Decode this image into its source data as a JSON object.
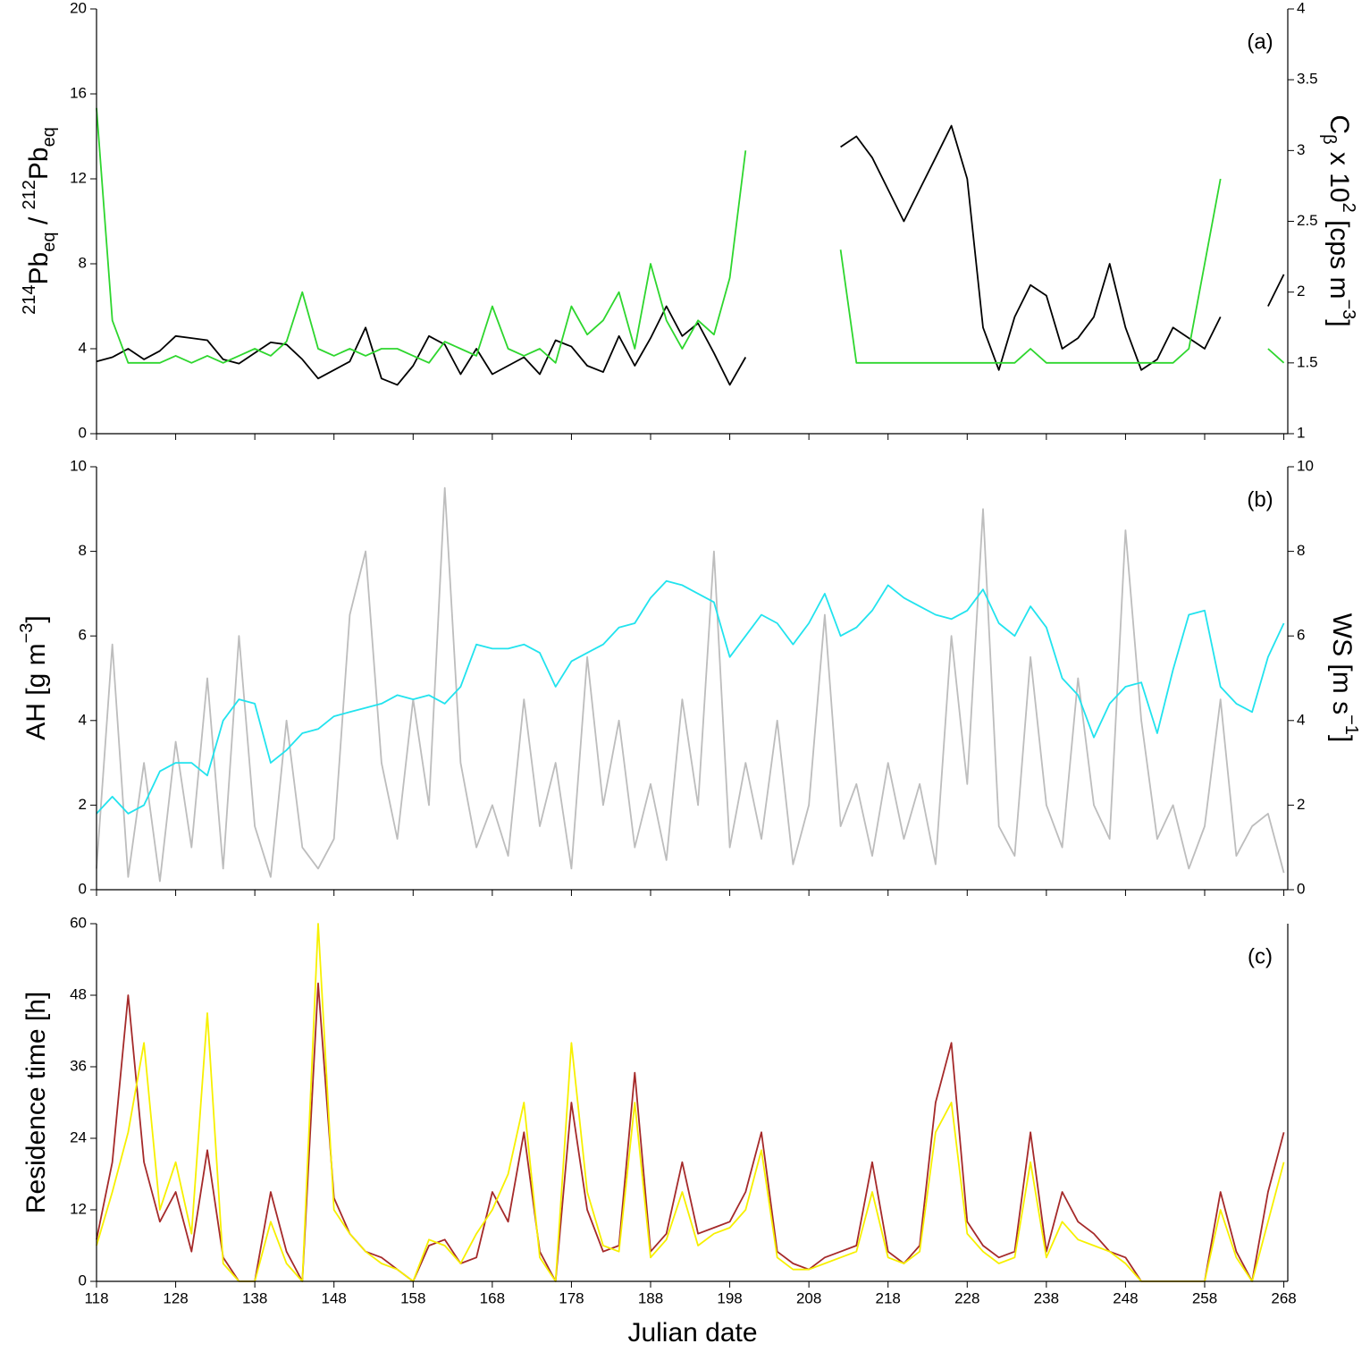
{
  "chart_data": [
    {
      "type": "line",
      "panel_label": "(a)",
      "y_label_parts": [
        "214",
        "Pb",
        "eq",
        " / ",
        "212",
        "Pb",
        "eq"
      ],
      "y2_label_parts": [
        "C",
        "β",
        " x 10",
        "2",
        " [cps m",
        "−3",
        "]"
      ],
      "xlim": [
        118,
        268.5
      ],
      "ylim": [
        0,
        20
      ],
      "yticks": [
        0,
        4,
        8,
        12,
        16,
        20
      ],
      "y2lim": [
        1,
        4
      ],
      "y2ticks": [
        1,
        1.5,
        2,
        2.5,
        3,
        3.5,
        4
      ],
      "x": [
        118,
        120,
        122,
        124,
        126,
        128,
        130,
        132,
        134,
        136,
        138,
        140,
        142,
        144,
        146,
        148,
        150,
        152,
        154,
        156,
        158,
        160,
        162,
        164,
        166,
        168,
        170,
        172,
        174,
        176,
        178,
        180,
        182,
        184,
        186,
        188,
        190,
        192,
        194,
        196,
        198,
        200,
        202,
        204,
        206,
        208,
        210,
        212,
        214,
        216,
        218,
        220,
        222,
        224,
        226,
        228,
        230,
        232,
        234,
        236,
        238,
        240,
        242,
        244,
        246,
        248,
        250,
        252,
        254,
        256,
        258,
        260,
        262,
        264,
        266,
        268
      ],
      "series": [
        {
          "color": "#000000",
          "axis": "y",
          "values": [
            3.4,
            3.6,
            4.0,
            3.5,
            3.9,
            4.6,
            4.5,
            4.4,
            3.5,
            3.3,
            3.8,
            4.3,
            4.2,
            3.5,
            2.6,
            3.0,
            3.4,
            5.0,
            2.6,
            2.3,
            3.2,
            4.6,
            4.2,
            2.8,
            4.0,
            2.8,
            3.2,
            3.6,
            2.8,
            4.4,
            4.1,
            3.2,
            2.9,
            4.6,
            3.2,
            4.5,
            6.0,
            4.6,
            5.2,
            3.8,
            2.3,
            3.6,
            null,
            null,
            null,
            null,
            null,
            13.5,
            14.0,
            13.0,
            11.5,
            10.0,
            11.5,
            13.0,
            14.5,
            12.0,
            5.0,
            3.0,
            5.5,
            7.0,
            6.5,
            4.0,
            4.5,
            5.5,
            8.0,
            5.0,
            3.0,
            3.5,
            5.0,
            4.5,
            4.0,
            5.5,
            null,
            null,
            6.0,
            7.5
          ]
        },
        {
          "color": "#2ed62e",
          "axis": "y2",
          "values": [
            3.3,
            1.8,
            1.5,
            1.5,
            1.5,
            1.55,
            1.5,
            1.55,
            1.5,
            1.55,
            1.6,
            1.55,
            1.65,
            2.0,
            1.6,
            1.55,
            1.6,
            1.55,
            1.6,
            1.6,
            1.55,
            1.5,
            1.65,
            1.6,
            1.55,
            1.9,
            1.6,
            1.55,
            1.6,
            1.5,
            1.9,
            1.7,
            1.8,
            2.0,
            1.6,
            2.2,
            1.8,
            1.6,
            1.8,
            1.7,
            2.1,
            3.0,
            null,
            null,
            null,
            null,
            null,
            2.3,
            1.5,
            1.5,
            1.5,
            1.5,
            1.5,
            1.5,
            1.5,
            1.5,
            1.5,
            1.5,
            1.5,
            1.6,
            1.5,
            1.5,
            1.5,
            1.5,
            1.5,
            1.5,
            1.5,
            1.5,
            1.5,
            1.6,
            2.2,
            2.8,
            null,
            null,
            1.6,
            1.5
          ]
        }
      ]
    },
    {
      "type": "line",
      "panel_label": "(b)",
      "y_label_parts": [
        "AH [g m",
        "−3",
        "]"
      ],
      "y2_label_parts": [
        "WS [m s",
        "−1",
        "]"
      ],
      "xlim": [
        118,
        268.5
      ],
      "ylim": [
        0,
        10
      ],
      "yticks": [
        0,
        2,
        4,
        6,
        8,
        10
      ],
      "y2lim": [
        0,
        10
      ],
      "y2ticks": [
        0,
        2,
        4,
        6,
        8,
        10
      ],
      "x": [
        118,
        120,
        122,
        124,
        126,
        128,
        130,
        132,
        134,
        136,
        138,
        140,
        142,
        144,
        146,
        148,
        150,
        152,
        154,
        156,
        158,
        160,
        162,
        164,
        166,
        168,
        170,
        172,
        174,
        176,
        178,
        180,
        182,
        184,
        186,
        188,
        190,
        192,
        194,
        196,
        198,
        200,
        202,
        204,
        206,
        208,
        210,
        212,
        214,
        216,
        218,
        220,
        222,
        224,
        226,
        228,
        230,
        232,
        234,
        236,
        238,
        240,
        242,
        244,
        246,
        248,
        250,
        252,
        254,
        256,
        258,
        260,
        262,
        264,
        266,
        268
      ],
      "series": [
        {
          "color": "#bdbdbd",
          "axis": "y2",
          "values": [
            0.5,
            5.8,
            0.3,
            3.0,
            0.2,
            3.5,
            1.0,
            5.0,
            0.5,
            6.0,
            1.5,
            0.3,
            4.0,
            1.0,
            0.5,
            1.2,
            6.5,
            8.0,
            3.0,
            1.2,
            4.5,
            2.0,
            9.5,
            3.0,
            1.0,
            2.0,
            0.8,
            4.5,
            1.5,
            3.0,
            0.5,
            5.5,
            2.0,
            4.0,
            1.0,
            2.5,
            0.7,
            4.5,
            2.0,
            8.0,
            1.0,
            3.0,
            1.2,
            4.0,
            0.6,
            2.0,
            6.5,
            1.5,
            2.5,
            0.8,
            3.0,
            1.2,
            2.5,
            0.6,
            6.0,
            2.5,
            9.0,
            1.5,
            0.8,
            5.5,
            2.0,
            1.0,
            5.0,
            2.0,
            1.2,
            8.5,
            4.0,
            1.2,
            2.0,
            0.5,
            1.5,
            4.5,
            0.8,
            1.5,
            1.8,
            0.4
          ]
        },
        {
          "color": "#22e3ee",
          "axis": "y",
          "values": [
            1.8,
            2.2,
            1.8,
            2.0,
            2.8,
            3.0,
            3.0,
            2.7,
            4.0,
            4.5,
            4.4,
            3.0,
            3.3,
            3.7,
            3.8,
            4.1,
            4.2,
            4.3,
            4.4,
            4.6,
            4.5,
            4.6,
            4.4,
            4.8,
            5.8,
            5.7,
            5.7,
            5.8,
            5.6,
            4.8,
            5.4,
            5.6,
            5.8,
            6.2,
            6.3,
            6.9,
            7.3,
            7.2,
            7.0,
            6.8,
            5.5,
            6.0,
            6.5,
            6.3,
            5.8,
            6.3,
            7.0,
            6.0,
            6.2,
            6.6,
            7.2,
            6.9,
            6.7,
            6.5,
            6.4,
            6.6,
            7.1,
            6.3,
            6.0,
            6.7,
            6.2,
            5.0,
            4.6,
            3.6,
            4.4,
            4.8,
            4.9,
            3.7,
            5.2,
            6.5,
            6.6,
            4.8,
            4.4,
            4.2,
            5.5,
            6.3
          ]
        }
      ]
    },
    {
      "type": "line",
      "panel_label": "(c)",
      "y_label_parts": [
        "Residence time [h]"
      ],
      "x_label": "Julian date",
      "xlim": [
        118,
        268.5
      ],
      "ylim": [
        0,
        60
      ],
      "yticks": [
        0,
        12,
        24,
        36,
        48,
        60
      ],
      "xticks": [
        118,
        128,
        138,
        148,
        158,
        168,
        178,
        188,
        198,
        208,
        218,
        228,
        238,
        248,
        258,
        268
      ],
      "x": [
        118,
        120,
        122,
        124,
        126,
        128,
        130,
        132,
        134,
        136,
        138,
        140,
        142,
        144,
        146,
        148,
        150,
        152,
        154,
        156,
        158,
        160,
        162,
        164,
        166,
        168,
        170,
        172,
        174,
        176,
        178,
        180,
        182,
        184,
        186,
        188,
        190,
        192,
        194,
        196,
        198,
        200,
        202,
        204,
        206,
        208,
        210,
        212,
        214,
        216,
        218,
        220,
        222,
        224,
        226,
        228,
        230,
        232,
        234,
        236,
        238,
        240,
        242,
        244,
        246,
        248,
        250,
        252,
        254,
        256,
        258,
        260,
        262,
        264,
        266,
        268
      ],
      "series": [
        {
          "color": "#a52a2a",
          "axis": "y",
          "values": [
            7,
            20,
            48,
            20,
            10,
            15,
            5,
            22,
            4,
            0,
            0,
            15,
            5,
            0,
            50,
            14,
            8,
            5,
            4,
            2,
            0,
            6,
            7,
            3,
            4,
            15,
            10,
            25,
            5,
            0,
            30,
            12,
            5,
            6,
            35,
            5,
            8,
            20,
            8,
            9,
            10,
            15,
            25,
            5,
            3,
            2,
            4,
            5,
            6,
            20,
            5,
            3,
            6,
            30,
            40,
            10,
            6,
            4,
            5,
            25,
            5,
            15,
            10,
            8,
            5,
            4,
            0,
            0,
            0,
            0,
            0,
            15,
            5,
            0,
            15,
            25
          ]
        },
        {
          "color": "#f7f000",
          "axis": "y",
          "values": [
            6,
            15,
            25,
            40,
            12,
            20,
            8,
            45,
            3,
            0,
            0,
            10,
            3,
            0,
            60,
            12,
            8,
            5,
            3,
            2,
            0,
            7,
            6,
            3,
            8,
            12,
            18,
            30,
            4,
            0,
            40,
            15,
            6,
            5,
            30,
            4,
            7,
            15,
            6,
            8,
            9,
            12,
            22,
            4,
            2,
            2,
            3,
            4,
            5,
            15,
            4,
            3,
            5,
            25,
            30,
            8,
            5,
            3,
            4,
            20,
            4,
            10,
            7,
            6,
            5,
            3,
            0,
            0,
            0,
            0,
            0,
            12,
            4,
            0,
            10,
            20
          ]
        }
      ]
    }
  ]
}
